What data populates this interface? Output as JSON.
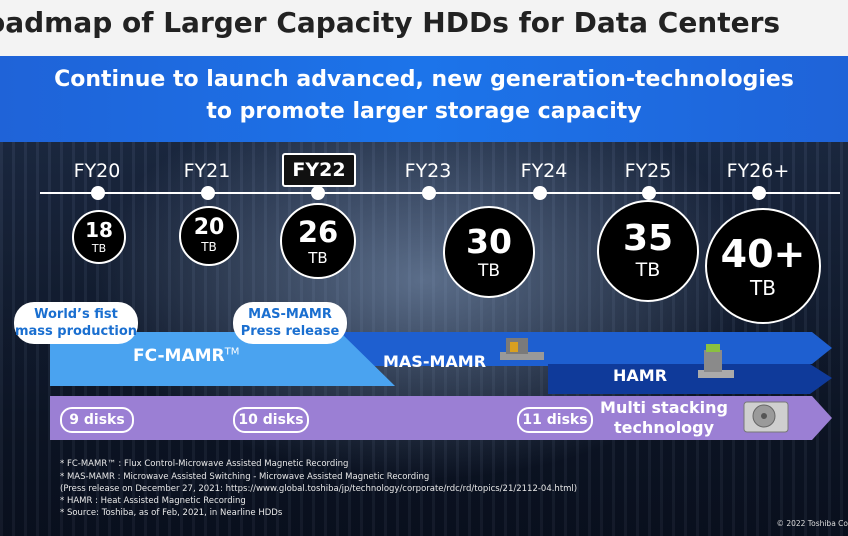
{
  "title": "oadmap of Larger Capacity HDDs for Data Centers",
  "banner": {
    "line1": "Continue to launch advanced, new generation-technologies",
    "line2": "to promote larger storage capacity"
  },
  "years": [
    "FY20",
    "FY21",
    "FY22",
    "FY23",
    "FY24",
    "FY25",
    "FY26+"
  ],
  "capacities": [
    {
      "value": "18",
      "unit": "TB"
    },
    {
      "value": "20",
      "unit": "TB"
    },
    {
      "value": "26",
      "unit": "TB"
    },
    {
      "value": "30",
      "unit": "TB"
    },
    {
      "value": "35",
      "unit": "TB"
    },
    {
      "value": "40+",
      "unit": "TB"
    }
  ],
  "callouts": {
    "first": {
      "line1": "World’s fist",
      "line2": "mass production"
    },
    "press": {
      "line1": "MAS-MAMR",
      "line2": "Press release"
    }
  },
  "tech": {
    "fc_mamr": "FC-MAMR",
    "tm": "TM",
    "mas_mamr": "MAS-MAMR",
    "hamr": "HAMR"
  },
  "disks": {
    "d9": "9 disks",
    "d10": "10 disks",
    "d11": "11 disks",
    "stack1": "Multi stacking",
    "stack2": "technology"
  },
  "footnotes": [
    "* FC-MAMR™ : Flux Control-Microwave Assisted Magnetic Recording",
    "* MAS-MAMR : Microwave Assisted Switching - Microwave Assisted Magnetic Recording",
    "  (Press release on December 27, 2021: https://www.global.toshiba/jp/technology/corporate/rdc/rd/topics/21/2112-04.html)",
    "* HAMR : Heat Assisted Magnetic Recording",
    "* Source: Toshiba, as of Feb, 2021, in Nearline HDDs"
  ],
  "copyright": "© 2022 Toshiba Co",
  "colors": {
    "banner": "#1f63d8",
    "fc_arrow": "#4aa3f0",
    "mas_arrow": "#1e5fd0",
    "hamr_arrow": "#0f3a9a",
    "disk_arrow": "#9b7fd4"
  }
}
